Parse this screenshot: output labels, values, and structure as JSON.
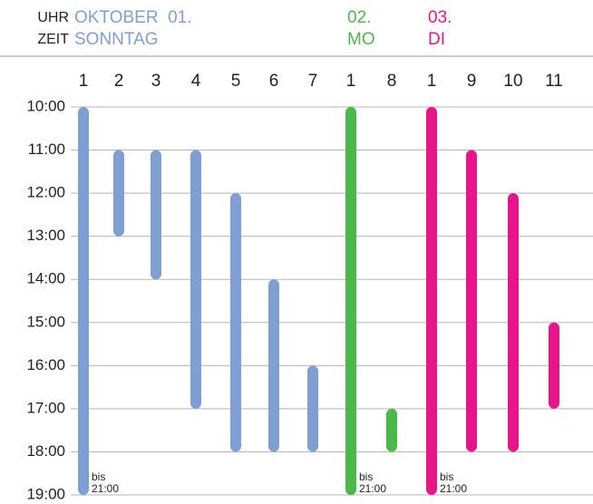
{
  "chart_data": {
    "type": "range",
    "header_top": "UHR",
    "header_bottom": "ZEIT",
    "ylim": [
      10,
      19
    ],
    "yticks": [
      {
        "value": 10,
        "label": "10:00"
      },
      {
        "value": 11,
        "label": "11:00"
      },
      {
        "value": 12,
        "label": "12:00"
      },
      {
        "value": 13,
        "label": "13:00"
      },
      {
        "value": 14,
        "label": "14:00"
      },
      {
        "value": 15,
        "label": "15:00"
      },
      {
        "value": 16,
        "label": "16:00"
      },
      {
        "value": 17,
        "label": "17:00"
      },
      {
        "value": 18,
        "label": "18:00"
      },
      {
        "value": 19,
        "label": "19:00"
      }
    ],
    "grid": true,
    "groups": [
      {
        "date": "OKTOBER  01.",
        "day": "SONNTAG",
        "color": "#7f9fd3",
        "categories": [
          "1",
          "2",
          "3",
          "4",
          "5",
          "6",
          "7"
        ],
        "starts": [
          10,
          11,
          11,
          11,
          12,
          14,
          16
        ],
        "ends": [
          19,
          13,
          14,
          17,
          18,
          18,
          18
        ],
        "notes": [
          "bis 21:00",
          null,
          null,
          null,
          null,
          null,
          null
        ]
      },
      {
        "date": "02.",
        "day": "MO",
        "color": "#4bb84a",
        "categories": [
          "1",
          "8"
        ],
        "starts": [
          10,
          17
        ],
        "ends": [
          19,
          18
        ],
        "notes": [
          "bis 21:00",
          null
        ]
      },
      {
        "date": "03.",
        "day": "DI",
        "color": "#e6168a",
        "categories": [
          "1",
          "9",
          "10",
          "11"
        ],
        "starts": [
          10,
          11,
          12,
          15
        ],
        "ends": [
          19,
          18,
          18,
          17
        ],
        "notes": [
          "bis 21:00",
          null,
          null,
          null
        ]
      }
    ]
  }
}
